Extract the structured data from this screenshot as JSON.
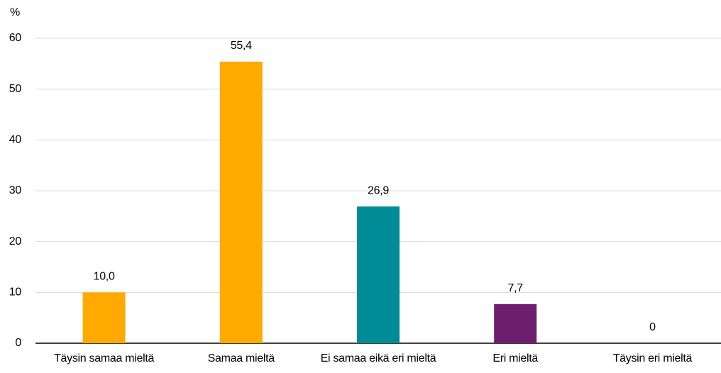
{
  "chart_data": {
    "type": "bar",
    "y_label": "%",
    "categories": [
      "Täysin samaa mieltä",
      "Samaa mieltä",
      "Ei samaa eikä eri mieltä",
      "Eri mieltä",
      "Täysin eri mieltä"
    ],
    "values": [
      10.0,
      55.4,
      26.9,
      7.7,
      0
    ],
    "value_labels": [
      "10,0",
      "55,4",
      "26,9",
      "7,7",
      "0"
    ],
    "colors": [
      "#ffaa00",
      "#ffaa00",
      "#008c96",
      "#6e1e6e",
      null
    ],
    "ylim": [
      0,
      60
    ],
    "yticks": [
      0,
      10,
      20,
      30,
      40,
      50,
      60
    ],
    "grid": true
  }
}
